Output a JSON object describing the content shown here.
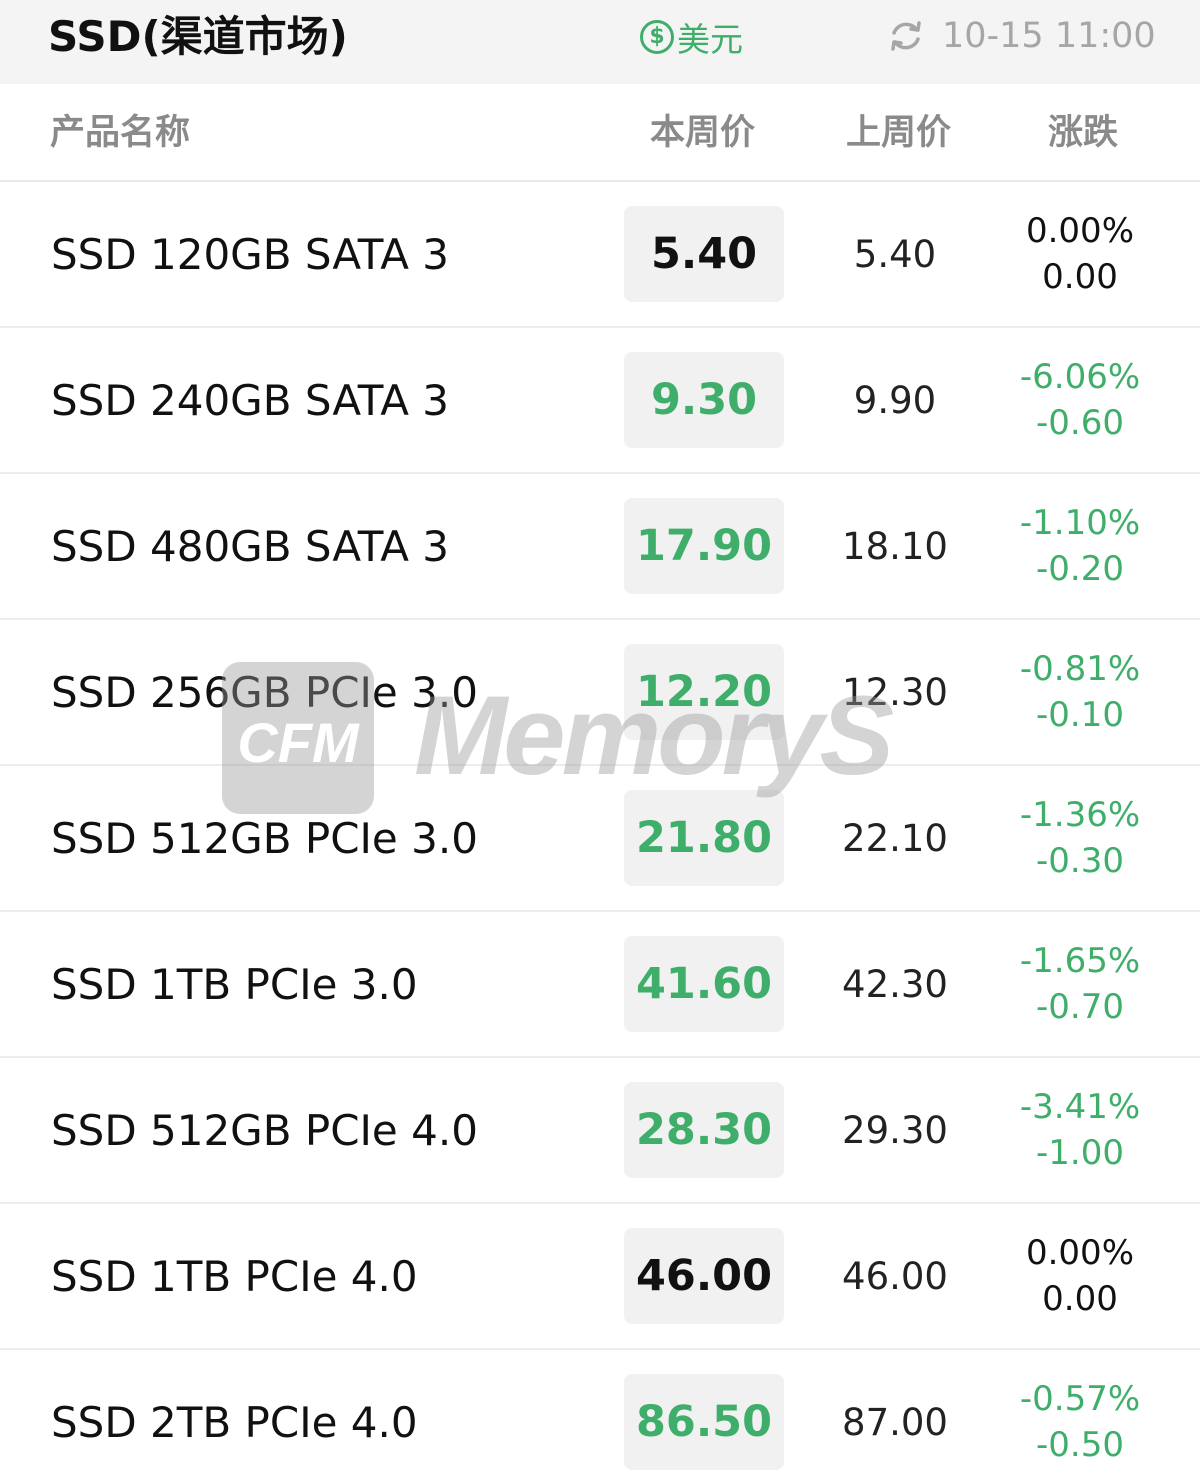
{
  "header": {
    "title": "SSD(渠道市场)",
    "currency_icon": "dollar-circle-icon",
    "currency_label": "美元",
    "refresh_icon": "refresh-icon",
    "timestamp": "10-15 11:00"
  },
  "columns": {
    "name": "产品名称",
    "this_week": "本周价",
    "last_week": "上周价",
    "change": "涨跌"
  },
  "rows": [
    {
      "name": "SSD 120GB SATA 3",
      "this_week": "5.40",
      "last_week": "5.40",
      "change_pct": "0.00%",
      "change_abs": "0.00",
      "trend": "flat"
    },
    {
      "name": "SSD 240GB SATA 3",
      "this_week": "9.30",
      "last_week": "9.90",
      "change_pct": "-6.06%",
      "change_abs": "-0.60",
      "trend": "down"
    },
    {
      "name": "SSD 480GB SATA 3",
      "this_week": "17.90",
      "last_week": "18.10",
      "change_pct": "-1.10%",
      "change_abs": "-0.20",
      "trend": "down"
    },
    {
      "name": "SSD 256GB PCIe 3.0",
      "this_week": "12.20",
      "last_week": "12.30",
      "change_pct": "-0.81%",
      "change_abs": "-0.10",
      "trend": "down"
    },
    {
      "name": "SSD 512GB PCIe 3.0",
      "this_week": "21.80",
      "last_week": "22.10",
      "change_pct": "-1.36%",
      "change_abs": "-0.30",
      "trend": "down"
    },
    {
      "name": "SSD 1TB PCIe 3.0",
      "this_week": "41.60",
      "last_week": "42.30",
      "change_pct": "-1.65%",
      "change_abs": "-0.70",
      "trend": "down"
    },
    {
      "name": "SSD 512GB PCIe 4.0",
      "this_week": "28.30",
      "last_week": "29.30",
      "change_pct": "-3.41%",
      "change_abs": "-1.00",
      "trend": "down"
    },
    {
      "name": "SSD 1TB PCIe 4.0",
      "this_week": "46.00",
      "last_week": "46.00",
      "change_pct": "0.00%",
      "change_abs": "0.00",
      "trend": "flat"
    },
    {
      "name": "SSD 2TB PCIe 4.0",
      "this_week": "86.50",
      "last_week": "87.00",
      "change_pct": "-0.57%",
      "change_abs": "-0.50",
      "trend": "down"
    }
  ],
  "watermark": {
    "logo": "CFM",
    "text": "MemoryS"
  },
  "colors": {
    "down": "#3fae6a",
    "flat": "#111111",
    "muted": "#a6a6a6"
  }
}
